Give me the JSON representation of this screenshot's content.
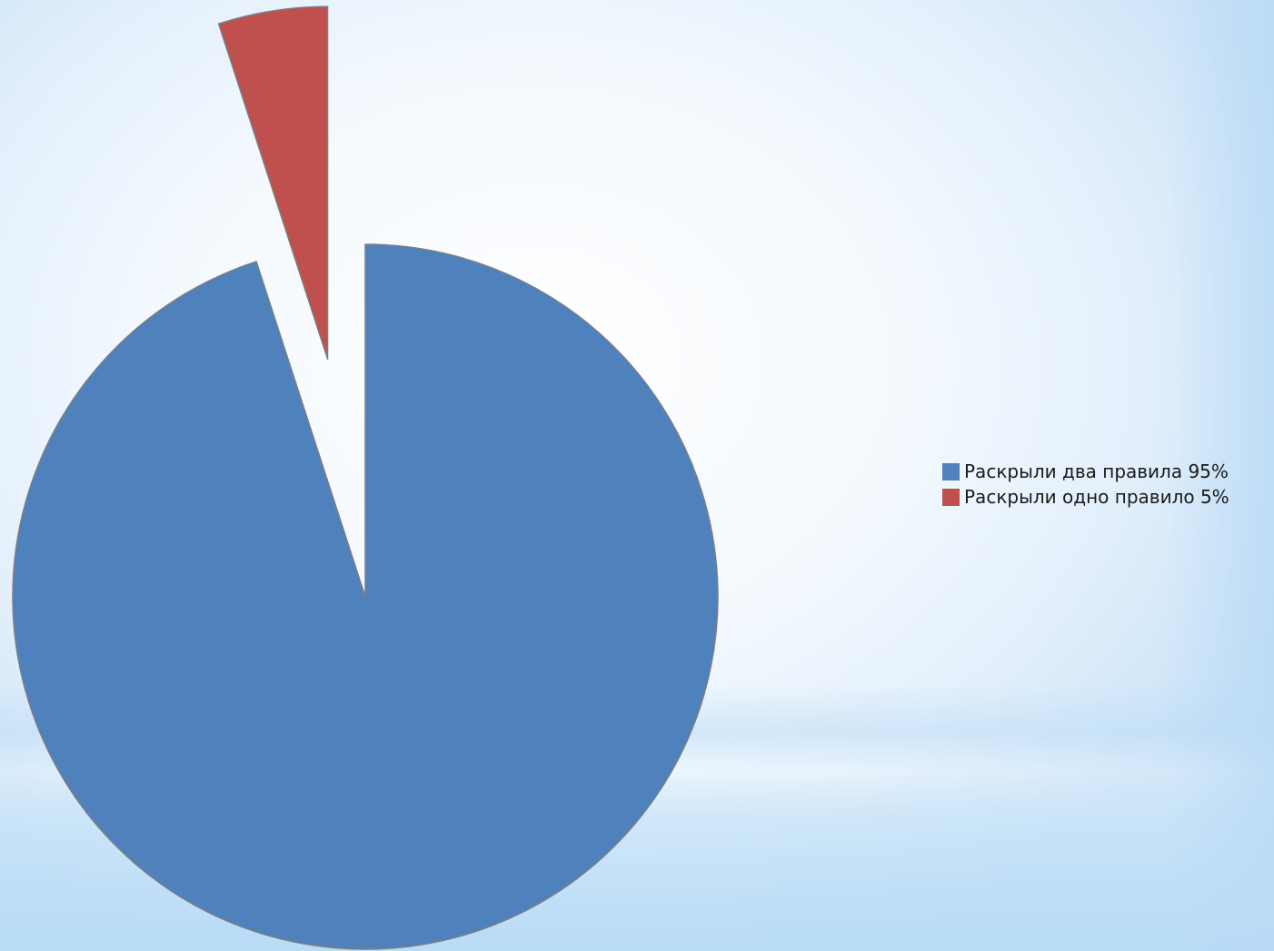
{
  "chart_data": {
    "type": "pie",
    "title": "",
    "slices": [
      {
        "label": "Раскрыли два правила 95%",
        "value": 95,
        "color": "#4f81bd",
        "exploded": false
      },
      {
        "label": "Раскрыли одно правило 5%",
        "value": 5,
        "color": "#c0504d",
        "exploded": true
      }
    ],
    "start_angle": "12 o'clock",
    "direction": "clockwise",
    "legend_position": "right"
  }
}
